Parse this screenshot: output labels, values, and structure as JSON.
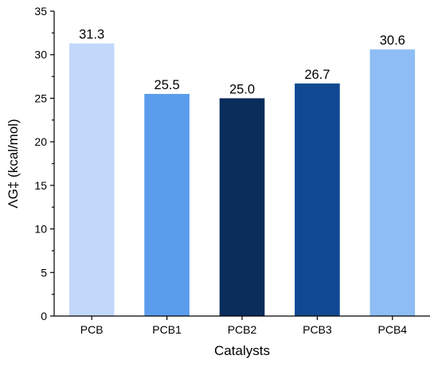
{
  "chart_data": {
    "type": "bar",
    "categories": [
      "PCB",
      "PCB1",
      "PCB2",
      "PCB3",
      "PCB4"
    ],
    "values": [
      31.3,
      25.5,
      25.0,
      26.7,
      30.6
    ],
    "value_labels": [
      "31.3",
      "25.5",
      "25.0",
      "26.7",
      "30.6"
    ],
    "bar_colors": [
      "#c2d8fb",
      "#5b9ded",
      "#0b2d5c",
      "#114a93",
      "#8dbdf4"
    ],
    "title": "",
    "xlabel": "Catalysts",
    "ylabel": "ΛG‡ (kcal/mol)",
    "ylim": [
      0,
      35
    ],
    "yticks": [
      0,
      5,
      10,
      15,
      20,
      25,
      30,
      35
    ],
    "ytick_labels": [
      "0",
      "5",
      "10",
      "15",
      "20",
      "25",
      "30",
      "35"
    ],
    "grid": false,
    "legend": "none"
  }
}
